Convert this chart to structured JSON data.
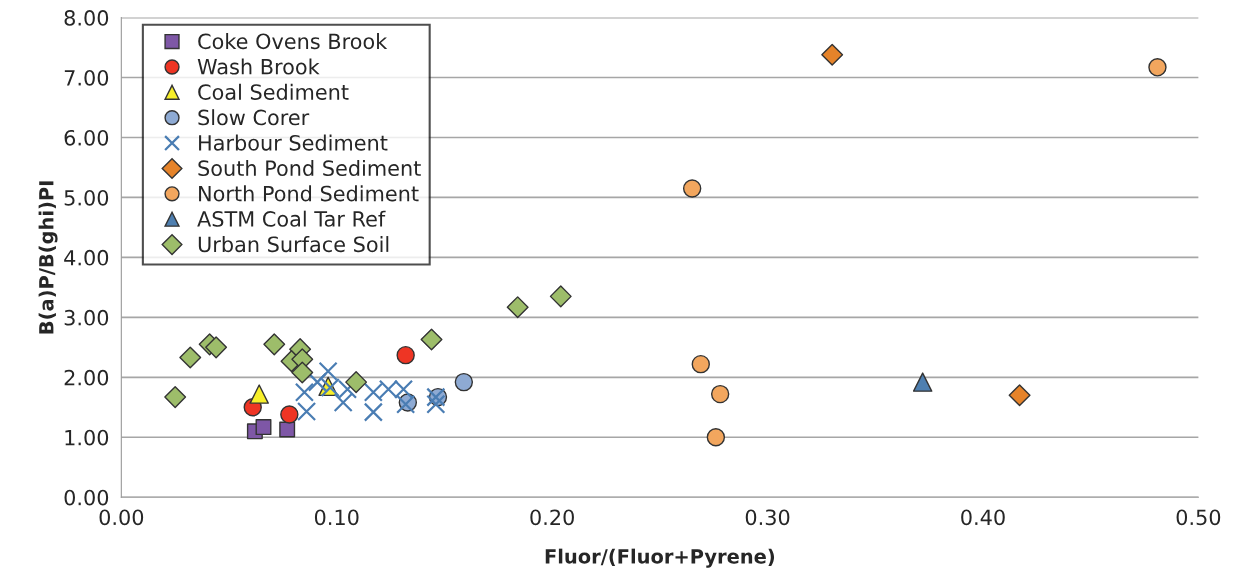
{
  "chart_data": {
    "type": "scatter",
    "xlabel": "Fluor/(Fluor+Pyrene)",
    "ylabel": "B(a)P/B(ghi)PI",
    "xlim": [
      0,
      0.5
    ],
    "ylim": [
      0,
      8
    ],
    "xticks": [
      {
        "value": 0,
        "label": "0.00"
      },
      {
        "value": 0.1,
        "label": "0.10"
      },
      {
        "value": 0.2,
        "label": "0.20"
      },
      {
        "value": 0.3,
        "label": "0.30"
      },
      {
        "value": 0.4,
        "label": "0.40"
      },
      {
        "value": 0.5,
        "label": "0.50"
      }
    ],
    "yticks": [
      {
        "value": 0,
        "label": "0.00"
      },
      {
        "value": 1,
        "label": "1.00"
      },
      {
        "value": 2,
        "label": "2.00"
      },
      {
        "value": 3,
        "label": "3.00"
      },
      {
        "value": 4,
        "label": "4.00"
      },
      {
        "value": 5,
        "label": "5.00"
      },
      {
        "value": 6,
        "label": "6.00"
      },
      {
        "value": 7,
        "label": "7.00"
      },
      {
        "value": 8,
        "label": "8.00"
      }
    ],
    "grid": "y",
    "legend": "top left",
    "series": [
      {
        "name": "Coke Ovens Brook",
        "color": "#7e57a6",
        "marker": "square",
        "x": [
          0.062,
          0.066,
          0.077
        ],
        "values": [
          1.1,
          1.17,
          1.13
        ]
      },
      {
        "name": "Wash Brook",
        "color": "#ee3524",
        "marker": "circle",
        "x": [
          0.061,
          0.078,
          0.132
        ],
        "values": [
          1.5,
          1.38,
          2.37
        ]
      },
      {
        "name": "Coal Sediment",
        "color": "#f7ef2a",
        "marker": "triangle",
        "x": [
          0.064,
          0.096
        ],
        "values": [
          1.72,
          1.85
        ]
      },
      {
        "name": "Slow Corer",
        "color": "#8eaad3",
        "marker": "circle",
        "x": [
          0.133,
          0.147,
          0.159
        ],
        "values": [
          1.58,
          1.67,
          1.92
        ]
      },
      {
        "name": "Harbour Sediment",
        "color": "#4a7db3",
        "marker": "cross",
        "x": [
          0.086,
          0.085,
          0.091,
          0.096,
          0.097,
          0.103,
          0.105,
          0.117,
          0.117,
          0.124,
          0.131,
          0.132,
          0.146,
          0.146
        ],
        "values": [
          1.43,
          1.75,
          1.92,
          2.1,
          1.83,
          1.58,
          1.8,
          1.75,
          1.42,
          1.8,
          1.8,
          1.55,
          1.55,
          1.67
        ]
      },
      {
        "name": "South Pond Sediment",
        "color": "#e5832a",
        "marker": "diamond",
        "x": [
          0.33,
          0.417
        ],
        "values": [
          7.38,
          1.7
        ]
      },
      {
        "name": "North Pond Sediment",
        "color": "#f2a65e",
        "marker": "circle",
        "x": [
          0.481,
          0.265,
          0.269,
          0.278,
          0.276
        ],
        "values": [
          7.17,
          5.15,
          2.22,
          1.72,
          1.0
        ]
      },
      {
        "name": "ASTM Coal Tar Ref",
        "color": "#4e7fb0",
        "marker": "triangle",
        "x": [
          0.372
        ],
        "values": [
          1.92
        ]
      },
      {
        "name": "Urban Surface Soil",
        "color": "#9dbd6a",
        "marker": "diamond",
        "x": [
          0.025,
          0.032,
          0.041,
          0.044,
          0.071,
          0.083,
          0.079,
          0.084,
          0.084,
          0.109,
          0.144,
          0.184,
          0.204
        ],
        "values": [
          1.67,
          2.33,
          2.55,
          2.5,
          2.55,
          2.47,
          2.27,
          2.3,
          2.08,
          1.92,
          2.63,
          3.17,
          3.35
        ]
      }
    ]
  }
}
